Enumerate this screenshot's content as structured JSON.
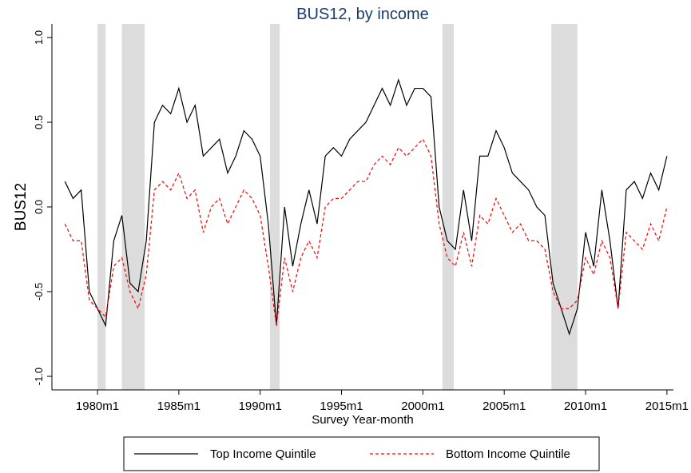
{
  "chart_data": {
    "type": "line",
    "title": "BUS12, by income",
    "xlabel": "Survey Year-month",
    "ylabel": "BUS12",
    "x": [
      1978,
      1978.5,
      1979,
      1979.5,
      1980,
      1980.5,
      1981,
      1981.5,
      1982,
      1982.5,
      1983,
      1983.5,
      1984,
      1984.5,
      1985,
      1985.5,
      1986,
      1986.5,
      1987,
      1987.5,
      1988,
      1988.5,
      1989,
      1989.5,
      1990,
      1990.5,
      1991,
      1991.5,
      1992,
      1992.5,
      1993,
      1993.5,
      1994,
      1994.5,
      1995,
      1995.5,
      1996,
      1996.5,
      1997,
      1997.5,
      1998,
      1998.5,
      1999,
      1999.5,
      2000,
      2000.5,
      2001,
      2001.5,
      2002,
      2002.5,
      2003,
      2003.5,
      2004,
      2004.5,
      2005,
      2005.5,
      2006,
      2006.5,
      2007,
      2007.5,
      2008,
      2008.5,
      2009,
      2009.5,
      2010,
      2010.5,
      2011,
      2011.5,
      2012,
      2012.5,
      2013,
      2013.5,
      2014,
      2014.5,
      2015
    ],
    "series": [
      {
        "name": "Top Income Quintile",
        "color": "#000000",
        "dash": "solid",
        "values": [
          0.15,
          0.05,
          0.1,
          -0.5,
          -0.6,
          -0.7,
          -0.2,
          -0.05,
          -0.45,
          -0.5,
          -0.2,
          0.5,
          0.6,
          0.55,
          0.7,
          0.5,
          0.6,
          0.3,
          0.35,
          0.4,
          0.2,
          0.3,
          0.45,
          0.4,
          0.3,
          -0.1,
          -0.7,
          0.0,
          -0.35,
          -0.1,
          0.1,
          -0.1,
          0.3,
          0.35,
          0.3,
          0.4,
          0.45,
          0.5,
          0.6,
          0.7,
          0.6,
          0.75,
          0.6,
          0.7,
          0.7,
          0.65,
          0.0,
          -0.2,
          -0.25,
          0.1,
          -0.2,
          0.3,
          0.3,
          0.45,
          0.35,
          0.2,
          0.15,
          0.1,
          0.0,
          -0.05,
          -0.45,
          -0.6,
          -0.75,
          -0.6,
          -0.15,
          -0.35,
          0.1,
          -0.2,
          -0.6,
          0.1,
          0.15,
          0.05,
          0.2,
          0.1,
          0.3
        ]
      },
      {
        "name": "Bottom Income Quintile",
        "color": "#ff0000",
        "dash": "dashed",
        "values": [
          -0.1,
          -0.2,
          -0.2,
          -0.55,
          -0.6,
          -0.65,
          -0.35,
          -0.3,
          -0.5,
          -0.6,
          -0.4,
          0.1,
          0.15,
          0.1,
          0.2,
          0.05,
          0.1,
          -0.15,
          0.0,
          0.05,
          -0.1,
          0.0,
          0.1,
          0.05,
          -0.05,
          -0.35,
          -0.7,
          -0.3,
          -0.5,
          -0.3,
          -0.2,
          -0.3,
          0.0,
          0.05,
          0.05,
          0.1,
          0.15,
          0.15,
          0.25,
          0.3,
          0.25,
          0.35,
          0.3,
          0.35,
          0.4,
          0.3,
          -0.1,
          -0.3,
          -0.35,
          -0.15,
          -0.35,
          -0.05,
          -0.1,
          0.05,
          -0.05,
          -0.15,
          -0.1,
          -0.2,
          -0.2,
          -0.25,
          -0.5,
          -0.6,
          -0.6,
          -0.55,
          -0.3,
          -0.4,
          -0.2,
          -0.3,
          -0.6,
          -0.15,
          -0.2,
          -0.25,
          -0.1,
          -0.2,
          0.0
        ]
      }
    ],
    "shaded_periods": [
      [
        1980.0,
        1980.5
      ],
      [
        1981.5,
        1982.9
      ],
      [
        1990.6,
        1991.2
      ],
      [
        2001.2,
        2001.9
      ],
      [
        2007.9,
        2009.5
      ]
    ],
    "shade_color": "#dcdcdc",
    "xlim": [
      1977.2,
      2015.4
    ],
    "ylim": [
      -1.08,
      1.08
    ],
    "xticks": [
      {
        "value": 1980,
        "label": "1980m1"
      },
      {
        "value": 1985,
        "label": "1985m1"
      },
      {
        "value": 1990,
        "label": "1990m1"
      },
      {
        "value": 1995,
        "label": "1995m1"
      },
      {
        "value": 2000,
        "label": "2000m1"
      },
      {
        "value": 2005,
        "label": "2005m1"
      },
      {
        "value": 2010,
        "label": "2010m1"
      },
      {
        "value": 2015,
        "label": "2015m1"
      }
    ],
    "yticks": [
      {
        "value": -1,
        "label": "-1.0"
      },
      {
        "value": -0.5,
        "label": "-0.5"
      },
      {
        "value": 0,
        "label": "0.0"
      },
      {
        "value": 0.5,
        "label": "0.5"
      },
      {
        "value": 1,
        "label": "1.0"
      }
    ],
    "legend": "bottom"
  }
}
